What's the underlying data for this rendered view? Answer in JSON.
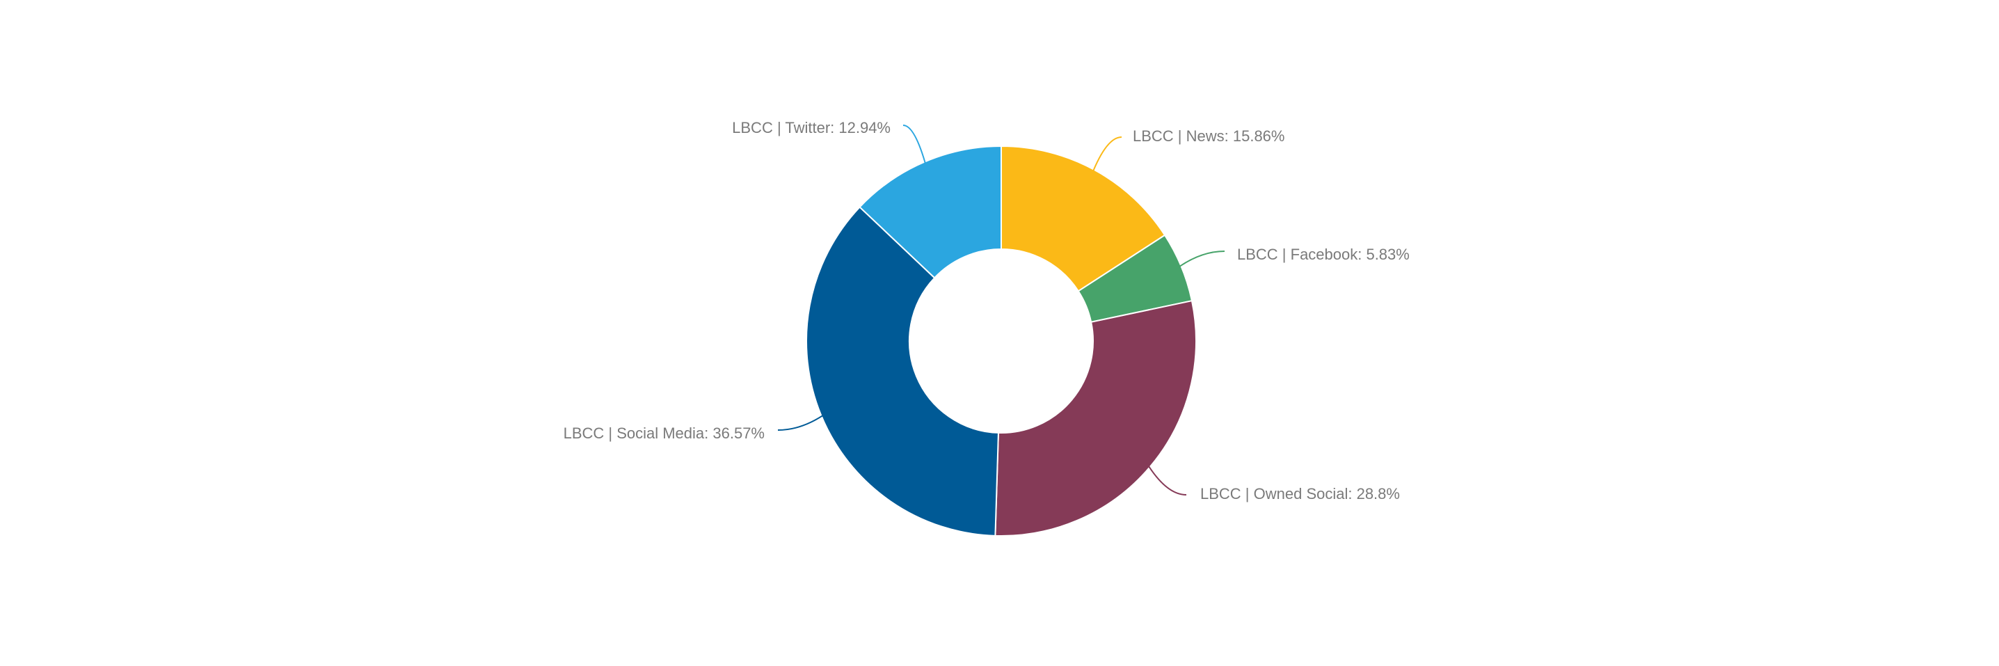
{
  "chart_data": {
    "type": "pie",
    "variant": "donut",
    "title": "",
    "legend": "none",
    "label_format": "{name}: {value}%",
    "slices": [
      {
        "name": "LBCC | News",
        "value": 15.86,
        "label": "LBCC | News: 15.86%",
        "color": "#FBB917"
      },
      {
        "name": "LBCC | Facebook",
        "value": 5.83,
        "label": "LBCC | Facebook: 5.83%",
        "color": "#47A36A"
      },
      {
        "name": "LBCC | Owned Social",
        "value": 28.8,
        "label": "LBCC | Owned Social: 28.8%",
        "color": "#853A57"
      },
      {
        "name": "LBCC | Social Media",
        "value": 36.57,
        "label": "LBCC | Social Media: 36.57%",
        "color": "#005A96"
      },
      {
        "name": "LBCC | Twitter",
        "value": 12.94,
        "label": "LBCC | Twitter: 12.94%",
        "color": "#2BA6E0"
      }
    ]
  }
}
